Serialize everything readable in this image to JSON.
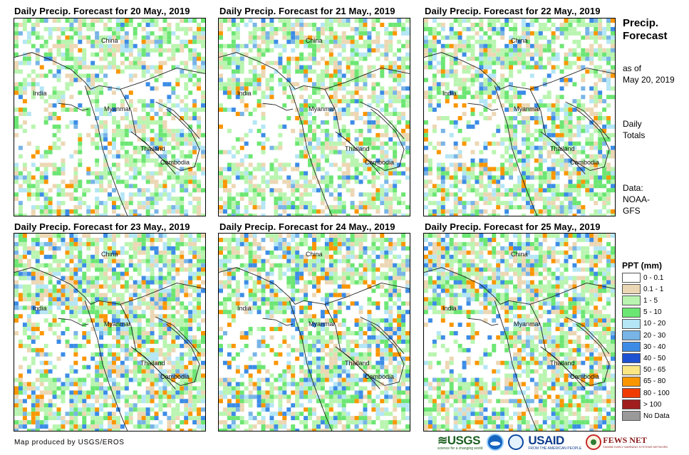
{
  "panels": [
    {
      "title": "Daily Precip. Forecast for 20 May., 2019",
      "labels": {
        "china": "China",
        "india": "India",
        "myanmar": "Myanmar",
        "thailand": "Thailand",
        "cambodia": "Cambodia"
      }
    },
    {
      "title": "Daily Precip. Forecast for 21 May., 2019",
      "labels": {
        "china": "China",
        "india": "India",
        "myanmar": "Myanmar",
        "thailand": "Thailand",
        "cambodia": "Cambodia"
      }
    },
    {
      "title": "Daily Precip. Forecast for 22 May., 2019",
      "labels": {
        "china": "China",
        "india": "India",
        "myanmar": "Myanmar",
        "thailand": "Thailand",
        "cambodia": "Cambodia"
      }
    },
    {
      "title": "Daily Precip. Forecast for 23 May., 2019",
      "labels": {
        "china": "China",
        "india": "India",
        "myanmar": "Myanmar",
        "thailand": "Thailand",
        "cambodia": "Cambodia"
      }
    },
    {
      "title": "Daily Precip. Forecast for 24 May., 2019",
      "labels": {
        "china": "China",
        "india": "India",
        "myanmar": "Myanmar",
        "thailand": "Thailand",
        "cambodia": "Cambodia"
      }
    },
    {
      "title": "Daily Precip. Forecast for 25 May., 2019",
      "labels": {
        "china": "China",
        "india": "India",
        "myanmar": "Myanmar",
        "thailand": "Thailand",
        "cambodia": "Cambodia"
      }
    }
  ],
  "side": {
    "title_line1": "Precip.",
    "title_line2": "Forecast",
    "asof_line1": "as of",
    "asof_line2": "May 20, 2019",
    "totals_line1": "Daily",
    "totals_line2": "Totals",
    "data_line1": "Data:",
    "data_line2": "NOAA-",
    "data_line3": "GFS"
  },
  "legend": {
    "title": "PPT (mm)",
    "items": [
      {
        "label": "0 - 0.1",
        "color": "#ffffff"
      },
      {
        "label": "0.1 - 1",
        "color": "#ecd7b4"
      },
      {
        "label": "1 - 5",
        "color": "#b9f5b0"
      },
      {
        "label": "5 - 10",
        "color": "#6ce673"
      },
      {
        "label": "10 - 20",
        "color": "#b4e6f5"
      },
      {
        "label": "20 - 30",
        "color": "#78b4e6"
      },
      {
        "label": "30 - 40",
        "color": "#3c8ce6"
      },
      {
        "label": "40 - 50",
        "color": "#1e50d2"
      },
      {
        "label": "50 - 65",
        "color": "#fae682"
      },
      {
        "label": "65 - 80",
        "color": "#fa9600"
      },
      {
        "label": "80 - 100",
        "color": "#f03c00"
      },
      {
        "label": "> 100",
        "color": "#a01e1e"
      },
      {
        "label": "No Data",
        "color": "#9a9a9a"
      }
    ]
  },
  "credit": "Map produced by USGS/EROS",
  "logos": {
    "usgs": "USGS",
    "usgs_tag": "science for a changing world",
    "usaid": "USAID",
    "usaid_tag": "FROM THE AMERICAN PEOPLE",
    "fews": "FEWS NET",
    "fews_tag": "FAMINE EARLY WARNING SYSTEMS NETWORK"
  }
}
